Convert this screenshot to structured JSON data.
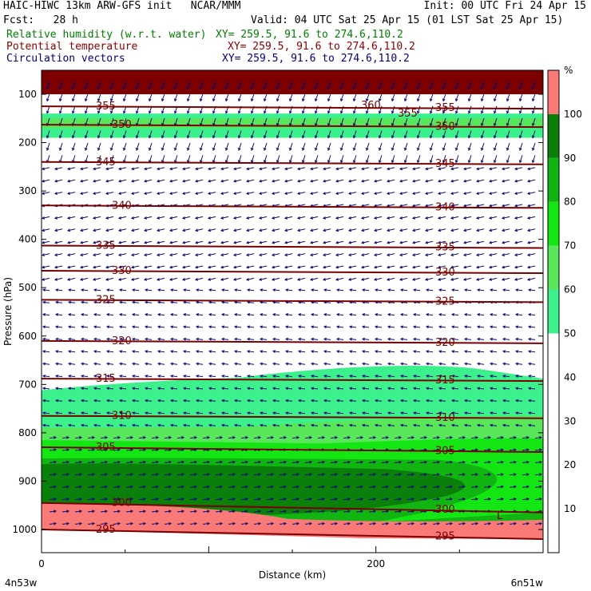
{
  "header": {
    "line1_left": "HAIC-HIWC 13km ARW-GFS init   NCAR/MMM",
    "line1_right": "Init: 00 UTC Fri 24 Apr 15",
    "fcst": "Fcst:   28 h",
    "valid": "Valid: 04 UTC Sat 25 Apr 15 (01 LST Sat 25 Apr 15)",
    "fields": [
      {
        "name": "Relative humidity (w.r.t. water)",
        "xy": "XY= 259.5, 91.6 to 274.6,110.2",
        "color": "#008000"
      },
      {
        "name": "Potential temperature",
        "xy": "XY= 259.5, 91.6 to 274.6,110.2",
        "color": "#8b0000"
      },
      {
        "name": "Circulation vectors",
        "xy": "XY= 259.5, 91.6 to 274.6,110.2",
        "color": "#000080"
      }
    ]
  },
  "chart_data": {
    "type": "cross-section",
    "ylabel": "Pressure (hPa)",
    "xlabel": "Distance (km)",
    "x_endpoints": [
      "4n53w",
      "6n51w"
    ],
    "xlim": [
      0,
      300
    ],
    "ylim": [
      1050,
      80
    ],
    "y_ticks": [
      100,
      200,
      300,
      400,
      500,
      600,
      700,
      800,
      900,
      1000
    ],
    "x_ticks": [
      0,
      200
    ],
    "theta_contours": [
      {
        "label": "355",
        "p": 125
      },
      {
        "label": "350",
        "p": 163
      },
      {
        "label": "345",
        "p": 240
      },
      {
        "label": "340",
        "p": 330
      },
      {
        "label": "335",
        "p": 413
      },
      {
        "label": "330",
        "p": 465
      },
      {
        "label": "325",
        "p": 525
      },
      {
        "label": "320",
        "p": 610
      },
      {
        "label": "315",
        "p": 688
      },
      {
        "label": "310",
        "p": 765
      },
      {
        "label": "305",
        "p": 830
      },
      {
        "label": "300",
        "p": 945
      },
      {
        "label": "295",
        "p": 1000
      }
    ],
    "upper_labels": [
      "360",
      "355"
    ],
    "low_marker": "L",
    "colorbar": {
      "unit": "%",
      "levels": [
        10,
        20,
        30,
        40,
        50,
        60,
        70,
        80,
        90,
        100
      ],
      "fills": [
        {
          "from": 50,
          "to": 60,
          "color": "#3cf08c"
        },
        {
          "from": 60,
          "to": 70,
          "color": "#5ae65a"
        },
        {
          "from": 70,
          "to": 80,
          "color": "#14e614"
        },
        {
          "from": 80,
          "to": 90,
          "color": "#12b412"
        },
        {
          "from": 90,
          "to": 100,
          "color": "#0a800a"
        },
        {
          "from": 100,
          "to": 110,
          "color": "#fa7a78"
        }
      ]
    },
    "colors": {
      "theta": "#7a0000",
      "vector": "#0a0a78",
      "top_band": "#7d0000"
    }
  }
}
